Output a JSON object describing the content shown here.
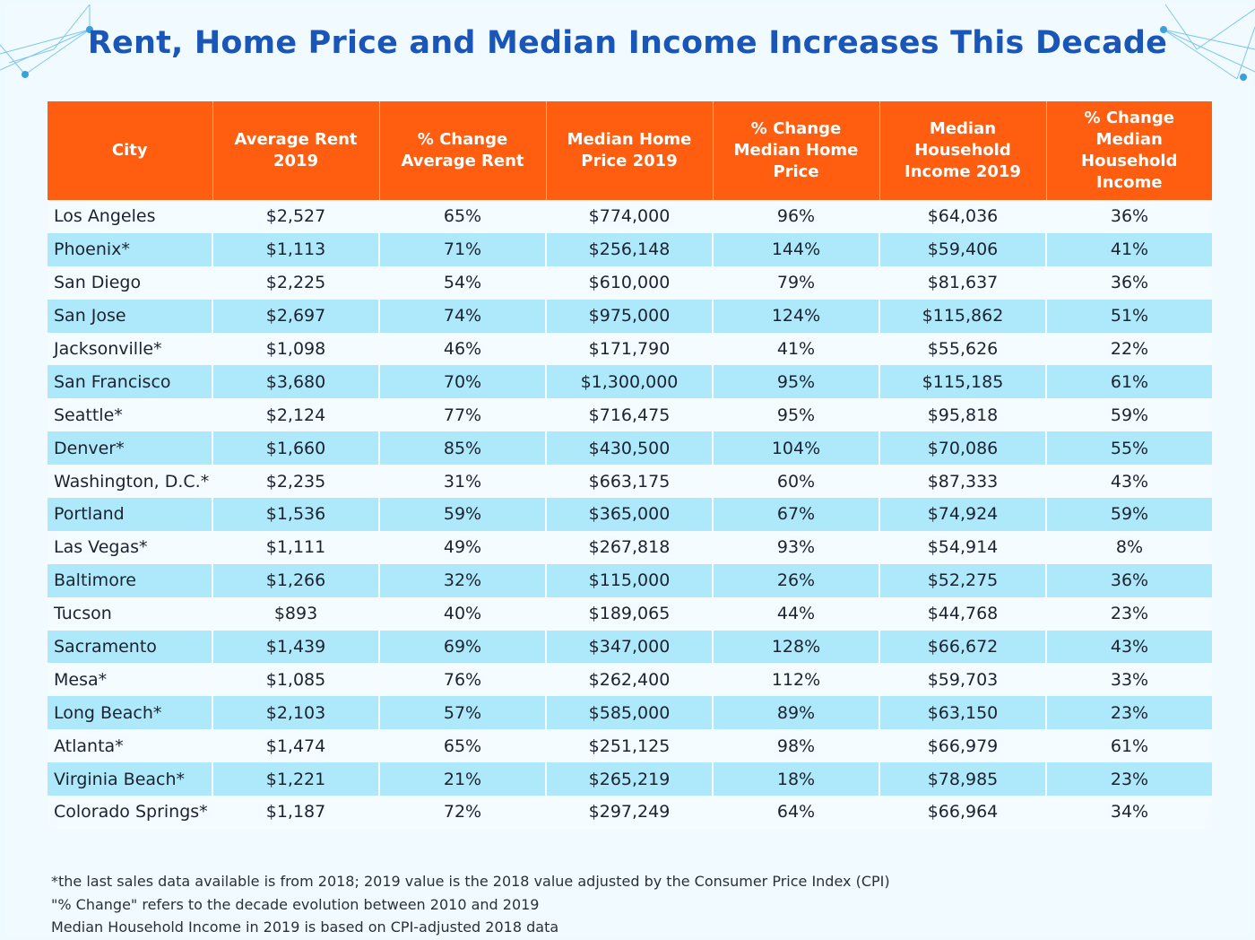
{
  "title": "Rent, Home Price and Median Income Increases This Decade",
  "colors": {
    "title": "#1a56b8",
    "header_bg": "#ff5e10",
    "row_alt": "#aee8fb",
    "row_base": "#f4fcff",
    "background": "#eefaff"
  },
  "chart_data": {
    "type": "table",
    "title": "Rent, Home Price and Median Income Increases This Decade",
    "columns": [
      "City",
      "Average Rent 2019",
      "% Change Average  Rent",
      "Median Home Price 2019",
      "% Change Median  Home Price",
      "Median Household Income 2019",
      "% Change Median Household Income"
    ],
    "rows": [
      [
        "Los  Angeles",
        "$2,527",
        "65%",
        "$774,000",
        "96%",
        "$64,036",
        "36%"
      ],
      [
        "Phoenix*",
        "$1,113",
        "71%",
        "$256,148",
        "144%",
        "$59,406",
        "41%"
      ],
      [
        "San Diego",
        "$2,225",
        "54%",
        "$610,000",
        "79%",
        "$81,637",
        "36%"
      ],
      [
        "San Jose",
        "$2,697",
        "74%",
        "$975,000",
        "124%",
        "$115,862",
        "51%"
      ],
      [
        "Jacksonville*",
        "$1,098",
        "46%",
        "$171,790",
        "41%",
        "$55,626",
        "22%"
      ],
      [
        "San Francisco",
        "$3,680",
        "70%",
        "$1,300,000",
        "95%",
        "$115,185",
        "61%"
      ],
      [
        "Seattle*",
        "$2,124",
        "77%",
        "$716,475",
        "95%",
        "$95,818",
        "59%"
      ],
      [
        "Denver*",
        "$1,660",
        "85%",
        "$430,500",
        "104%",
        "$70,086",
        "55%"
      ],
      [
        "Washington, D.C.*",
        "$2,235",
        "31%",
        "$663,175",
        "60%",
        "$87,333",
        "43%"
      ],
      [
        "Portland",
        "$1,536",
        "59%",
        "$365,000",
        "67%",
        "$74,924",
        "59%"
      ],
      [
        "Las Vegas*",
        "$1,111",
        "49%",
        "$267,818",
        "93%",
        "$54,914",
        "8%"
      ],
      [
        "Baltimore",
        "$1,266",
        "32%",
        "$115,000",
        "26%",
        "$52,275",
        "36%"
      ],
      [
        "Tucson",
        "$893",
        "40%",
        "$189,065",
        "44%",
        "$44,768",
        "23%"
      ],
      [
        "Sacramento",
        "$1,439",
        "69%",
        "$347,000",
        "128%",
        "$66,672",
        "43%"
      ],
      [
        "Mesa*",
        "$1,085",
        "76%",
        "$262,400",
        "112%",
        "$59,703",
        "33%"
      ],
      [
        "Long Beach*",
        "$2,103",
        "57%",
        "$585,000",
        "89%",
        "$63,150",
        "23%"
      ],
      [
        "Atlanta*",
        "$1,474",
        "65%",
        "$251,125",
        "98%",
        "$66,979",
        "61%"
      ],
      [
        "Virginia Beach*",
        "$1,221",
        "21%",
        "$265,219",
        "18%",
        "$78,985",
        "23%"
      ],
      [
        "Colorado Springs*",
        "$1,187",
        "72%",
        "$297,249",
        "64%",
        "$66,964",
        "34%"
      ]
    ]
  },
  "footnotes": [
    "*the last sales data available is from 2018; 2019 value is the 2018 value adjusted by the Consumer Price Index (CPI)",
    "\"% Change\" refers to the decade evolution between 2010 and 2019",
    "Median Household Income in 2019 is based on CPI-adjusted 2018 data"
  ]
}
